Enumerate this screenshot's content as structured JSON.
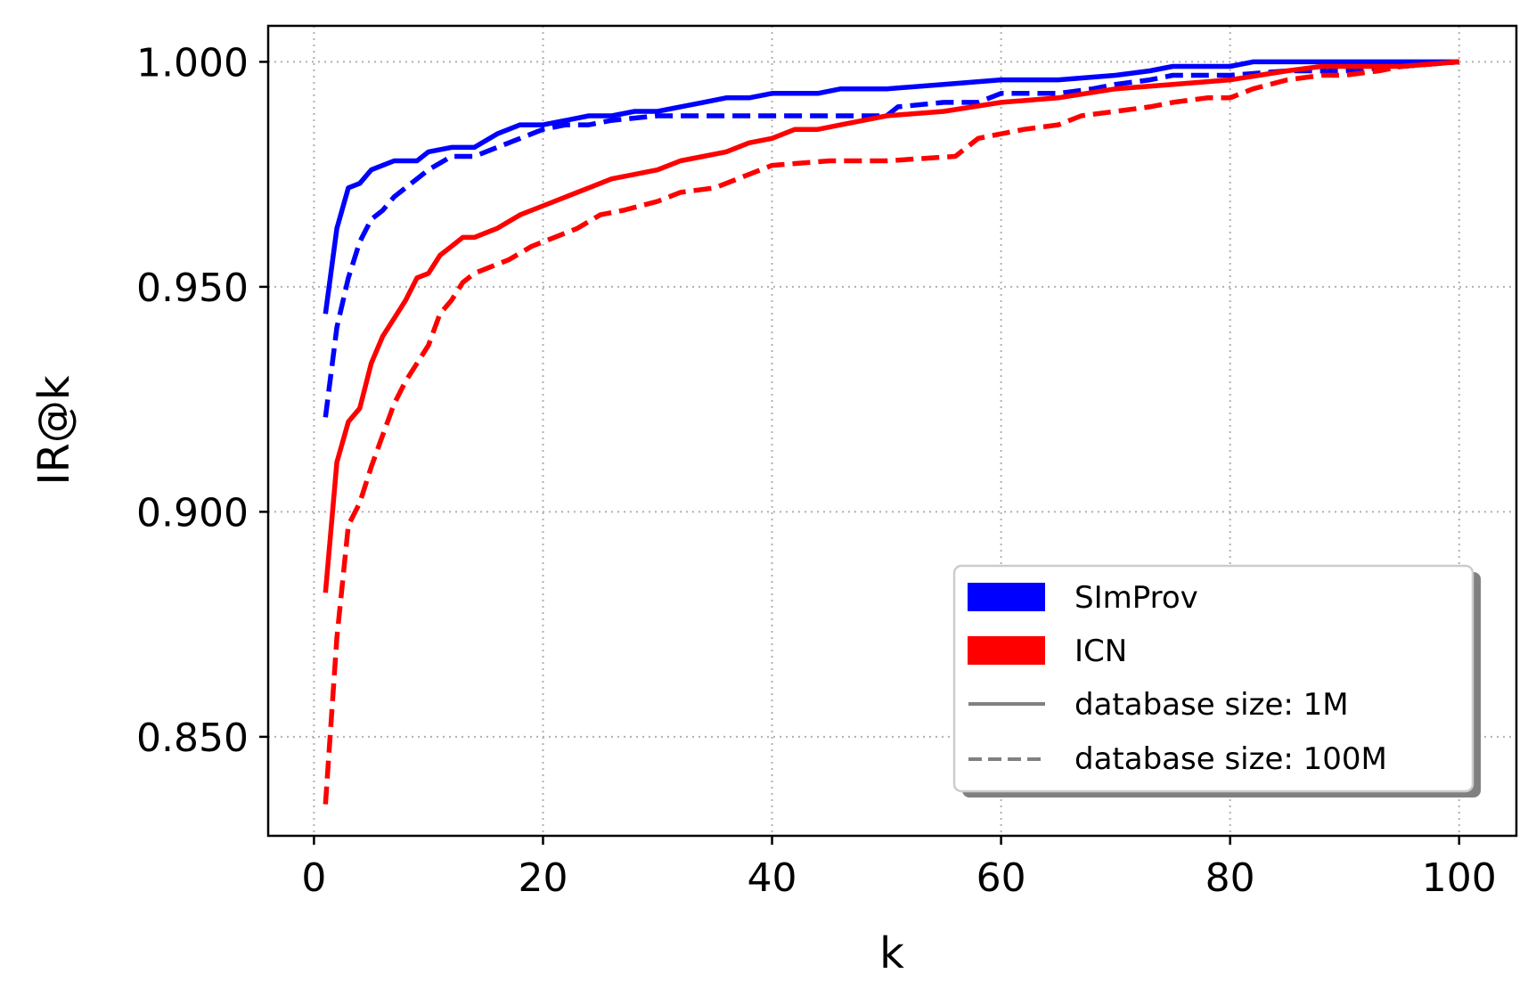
{
  "chart_data": {
    "type": "line",
    "title": "",
    "xlabel": "k",
    "ylabel": "IR@k",
    "xlim": [
      -4,
      105
    ],
    "ylim": [
      0.828,
      1.008
    ],
    "xticks": [
      0,
      20,
      40,
      60,
      80,
      100
    ],
    "xtick_labels": [
      "0",
      "20",
      "40",
      "60",
      "80",
      "100"
    ],
    "yticks": [
      0.85,
      0.9,
      0.95,
      1.0
    ],
    "ytick_labels": [
      "0.850",
      "0.900",
      "0.950",
      "1.000"
    ],
    "grid": true,
    "legend_position": "lower-right",
    "legend": [
      {
        "label": "SImProv",
        "kind": "patch",
        "color": "#0000ff"
      },
      {
        "label": "ICN",
        "kind": "patch",
        "color": "#ff0000"
      },
      {
        "label": "database size: 1M",
        "kind": "line",
        "style": "solid",
        "color": "#808080"
      },
      {
        "label": "database size: 100M",
        "kind": "line",
        "style": "dashed",
        "color": "#808080"
      }
    ],
    "series": [
      {
        "method": "SImProv",
        "database_size": "1M",
        "color": "#0000ff",
        "style": "solid",
        "x": [
          1,
          2,
          3,
          4,
          5,
          6,
          7,
          8,
          9,
          10,
          12,
          14,
          16,
          18,
          20,
          22,
          24,
          26,
          28,
          30,
          32,
          34,
          36,
          38,
          40,
          42,
          44,
          46,
          48,
          50,
          55,
          60,
          65,
          70,
          73,
          75,
          80,
          82,
          85,
          90,
          95,
          100
        ],
        "y": [
          0.944,
          0.963,
          0.972,
          0.973,
          0.976,
          0.977,
          0.978,
          0.978,
          0.978,
          0.98,
          0.981,
          0.981,
          0.984,
          0.986,
          0.986,
          0.987,
          0.988,
          0.988,
          0.989,
          0.989,
          0.99,
          0.991,
          0.992,
          0.992,
          0.993,
          0.993,
          0.993,
          0.994,
          0.994,
          0.994,
          0.995,
          0.996,
          0.996,
          0.997,
          0.998,
          0.999,
          0.999,
          1.0,
          1.0,
          1.0,
          1.0,
          1.0
        ]
      },
      {
        "method": "SImProv",
        "database_size": "100M",
        "color": "#0000ff",
        "style": "dashed",
        "x": [
          1,
          2,
          3,
          4,
          5,
          6,
          7,
          8,
          9,
          10,
          12,
          14,
          16,
          18,
          20,
          22,
          24,
          26,
          30,
          35,
          40,
          45,
          50,
          51,
          55,
          58,
          60,
          65,
          68,
          70,
          73,
          75,
          80,
          85,
          90,
          95,
          100
        ],
        "y": [
          0.921,
          0.941,
          0.952,
          0.96,
          0.965,
          0.967,
          0.97,
          0.972,
          0.974,
          0.976,
          0.979,
          0.979,
          0.981,
          0.983,
          0.985,
          0.986,
          0.986,
          0.987,
          0.988,
          0.988,
          0.988,
          0.988,
          0.988,
          0.99,
          0.991,
          0.991,
          0.993,
          0.993,
          0.994,
          0.995,
          0.996,
          0.997,
          0.997,
          0.998,
          0.998,
          0.999,
          1.0
        ]
      },
      {
        "method": "ICN",
        "database_size": "1M",
        "color": "#ff0000",
        "style": "solid",
        "x": [
          1,
          2,
          3,
          4,
          5,
          6,
          7,
          8,
          9,
          10,
          11,
          12,
          13,
          14,
          15,
          16,
          18,
          20,
          22,
          24,
          26,
          28,
          30,
          32,
          34,
          36,
          38,
          40,
          42,
          44,
          46,
          48,
          50,
          55,
          60,
          65,
          70,
          75,
          80,
          85,
          88,
          90,
          95,
          100
        ],
        "y": [
          0.882,
          0.911,
          0.92,
          0.923,
          0.933,
          0.939,
          0.943,
          0.947,
          0.952,
          0.953,
          0.957,
          0.959,
          0.961,
          0.961,
          0.962,
          0.963,
          0.966,
          0.968,
          0.97,
          0.972,
          0.974,
          0.975,
          0.976,
          0.978,
          0.979,
          0.98,
          0.982,
          0.983,
          0.985,
          0.985,
          0.986,
          0.987,
          0.988,
          0.989,
          0.991,
          0.992,
          0.994,
          0.995,
          0.996,
          0.998,
          0.999,
          0.999,
          0.999,
          1.0
        ]
      },
      {
        "method": "ICN",
        "database_size": "100M",
        "color": "#ff0000",
        "style": "dashed",
        "x": [
          1,
          2,
          3,
          4,
          5,
          6,
          7,
          8,
          9,
          10,
          11,
          12,
          13,
          14,
          15,
          17,
          19,
          21,
          23,
          25,
          27,
          30,
          32,
          35,
          37,
          40,
          45,
          50,
          56,
          58,
          60,
          62,
          65,
          67,
          70,
          73,
          75,
          78,
          80,
          82,
          85,
          88,
          90,
          93,
          95,
          100
        ],
        "y": [
          0.835,
          0.872,
          0.897,
          0.902,
          0.91,
          0.917,
          0.924,
          0.929,
          0.933,
          0.937,
          0.944,
          0.947,
          0.951,
          0.953,
          0.954,
          0.956,
          0.959,
          0.961,
          0.963,
          0.966,
          0.967,
          0.969,
          0.971,
          0.972,
          0.974,
          0.977,
          0.978,
          0.978,
          0.979,
          0.983,
          0.984,
          0.985,
          0.986,
          0.988,
          0.989,
          0.99,
          0.991,
          0.992,
          0.992,
          0.994,
          0.996,
          0.997,
          0.997,
          0.998,
          0.999,
          1.0
        ]
      }
    ]
  }
}
